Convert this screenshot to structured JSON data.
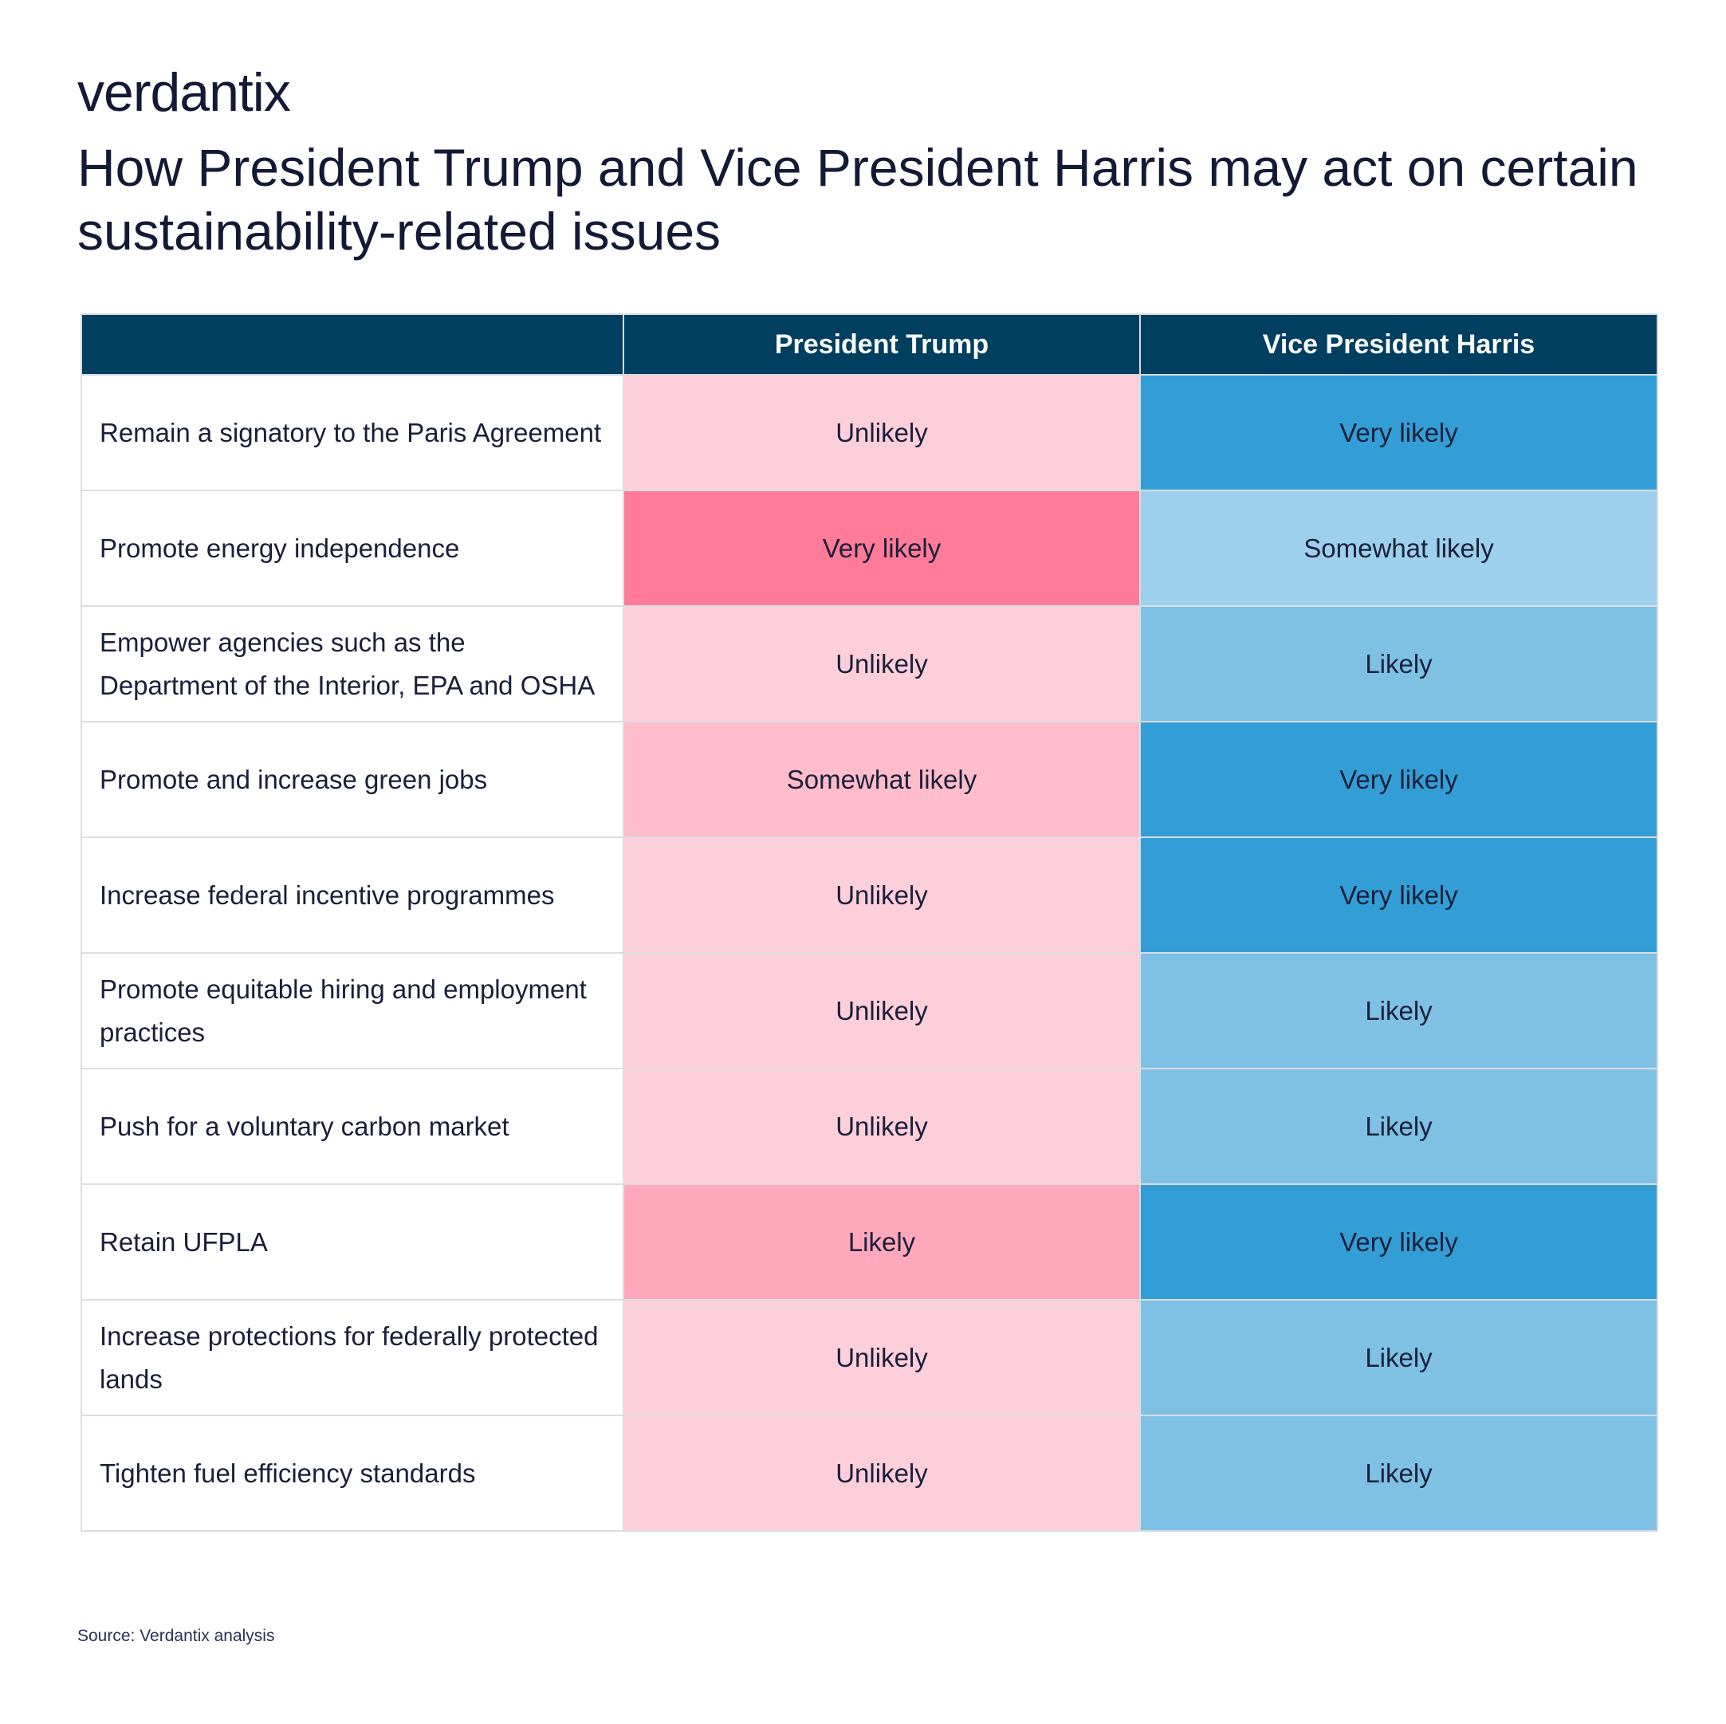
{
  "brand": "verdantix",
  "title": "How President Trump and Vice President Harris may act on certain sustainability-related issues",
  "source": "Source: Verdantix analysis",
  "colors": {
    "header_bg": "#003f5f",
    "trump": {
      "Very likely": "#ff7b97",
      "Likely": "#ffa8bc",
      "Somewhat likely": "#ffbccb",
      "Unlikely": "#fdcfda"
    },
    "harris": {
      "Very likely": "#339ed6",
      "Likely": "#7ec1e5",
      "Somewhat likely": "#9dd0ec",
      "Unlikely": "#d6ebf7"
    }
  },
  "chart_data": {
    "type": "table",
    "title": "How President Trump and Vice President Harris may act on certain sustainability-related issues",
    "columns": [
      "",
      "President Trump",
      "Vice President Harris"
    ],
    "rows": [
      {
        "issue": "Remain a signatory to the Paris Agreement",
        "trump": "Unlikely",
        "harris": "Very likely"
      },
      {
        "issue": "Promote energy independence",
        "trump": "Very likely",
        "harris": "Somewhat likely"
      },
      {
        "issue": "Empower agencies such as the Department of the Interior, EPA and OSHA",
        "trump": "Unlikely",
        "harris": "Likely"
      },
      {
        "issue": "Promote and increase green jobs",
        "trump": "Somewhat likely",
        "harris": "Very likely"
      },
      {
        "issue": "Increase federal incentive programmes",
        "trump": "Unlikely",
        "harris": "Very likely"
      },
      {
        "issue": "Promote equitable hiring and employment practices",
        "trump": "Unlikely",
        "harris": "Likely"
      },
      {
        "issue": "Push for a voluntary carbon market",
        "trump": "Unlikely",
        "harris": "Likely"
      },
      {
        "issue": "Retain UFPLA",
        "trump": "Likely",
        "harris": "Very likely"
      },
      {
        "issue": "Increase protections for federally protected lands",
        "trump": "Unlikely",
        "harris": "Likely"
      },
      {
        "issue": "Tighten fuel efficiency standards",
        "trump": "Unlikely",
        "harris": "Likely"
      }
    ]
  }
}
